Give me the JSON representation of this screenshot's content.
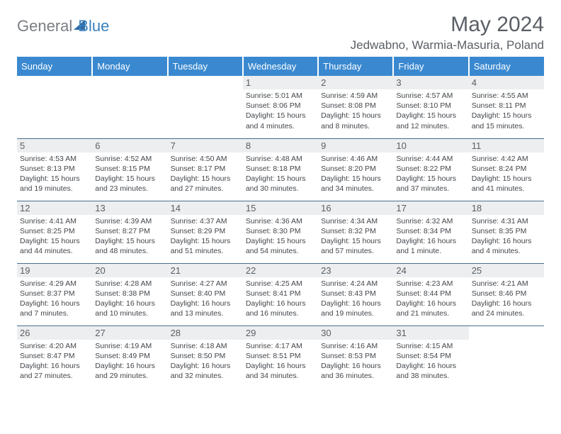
{
  "brand": {
    "word1": "General",
    "word2": "Blue"
  },
  "title": "May 2024",
  "location": "Jedwabno, Warmia-Masuria, Poland",
  "colors": {
    "header_bg": "#3a89d0",
    "header_text": "#ffffff",
    "daynum_bg": "#eceeef",
    "daynum_text": "#5b5f64",
    "body_text": "#42464b",
    "border": "#4a6e8f",
    "brand_grey": "#7a7f85",
    "brand_blue": "#3a7fbf",
    "title_color": "#5a5f66",
    "page_bg": "#ffffff"
  },
  "fonts": {
    "base": "Arial, Helvetica, sans-serif",
    "title_size": 30,
    "header_size": 13,
    "cell_size": 10.5
  },
  "weekdays": [
    "Sunday",
    "Monday",
    "Tuesday",
    "Wednesday",
    "Thursday",
    "Friday",
    "Saturday"
  ],
  "weeks": [
    [
      {
        "day": "",
        "sunrise": "",
        "sunset": "",
        "daylight": ""
      },
      {
        "day": "",
        "sunrise": "",
        "sunset": "",
        "daylight": ""
      },
      {
        "day": "",
        "sunrise": "",
        "sunset": "",
        "daylight": ""
      },
      {
        "day": "1",
        "sunrise": "Sunrise: 5:01 AM",
        "sunset": "Sunset: 8:06 PM",
        "daylight": "Daylight: 15 hours and 4 minutes."
      },
      {
        "day": "2",
        "sunrise": "Sunrise: 4:59 AM",
        "sunset": "Sunset: 8:08 PM",
        "daylight": "Daylight: 15 hours and 8 minutes."
      },
      {
        "day": "3",
        "sunrise": "Sunrise: 4:57 AM",
        "sunset": "Sunset: 8:10 PM",
        "daylight": "Daylight: 15 hours and 12 minutes."
      },
      {
        "day": "4",
        "sunrise": "Sunrise: 4:55 AM",
        "sunset": "Sunset: 8:11 PM",
        "daylight": "Daylight: 15 hours and 15 minutes."
      }
    ],
    [
      {
        "day": "5",
        "sunrise": "Sunrise: 4:53 AM",
        "sunset": "Sunset: 8:13 PM",
        "daylight": "Daylight: 15 hours and 19 minutes."
      },
      {
        "day": "6",
        "sunrise": "Sunrise: 4:52 AM",
        "sunset": "Sunset: 8:15 PM",
        "daylight": "Daylight: 15 hours and 23 minutes."
      },
      {
        "day": "7",
        "sunrise": "Sunrise: 4:50 AM",
        "sunset": "Sunset: 8:17 PM",
        "daylight": "Daylight: 15 hours and 27 minutes."
      },
      {
        "day": "8",
        "sunrise": "Sunrise: 4:48 AM",
        "sunset": "Sunset: 8:18 PM",
        "daylight": "Daylight: 15 hours and 30 minutes."
      },
      {
        "day": "9",
        "sunrise": "Sunrise: 4:46 AM",
        "sunset": "Sunset: 8:20 PM",
        "daylight": "Daylight: 15 hours and 34 minutes."
      },
      {
        "day": "10",
        "sunrise": "Sunrise: 4:44 AM",
        "sunset": "Sunset: 8:22 PM",
        "daylight": "Daylight: 15 hours and 37 minutes."
      },
      {
        "day": "11",
        "sunrise": "Sunrise: 4:42 AM",
        "sunset": "Sunset: 8:24 PM",
        "daylight": "Daylight: 15 hours and 41 minutes."
      }
    ],
    [
      {
        "day": "12",
        "sunrise": "Sunrise: 4:41 AM",
        "sunset": "Sunset: 8:25 PM",
        "daylight": "Daylight: 15 hours and 44 minutes."
      },
      {
        "day": "13",
        "sunrise": "Sunrise: 4:39 AM",
        "sunset": "Sunset: 8:27 PM",
        "daylight": "Daylight: 15 hours and 48 minutes."
      },
      {
        "day": "14",
        "sunrise": "Sunrise: 4:37 AM",
        "sunset": "Sunset: 8:29 PM",
        "daylight": "Daylight: 15 hours and 51 minutes."
      },
      {
        "day": "15",
        "sunrise": "Sunrise: 4:36 AM",
        "sunset": "Sunset: 8:30 PM",
        "daylight": "Daylight: 15 hours and 54 minutes."
      },
      {
        "day": "16",
        "sunrise": "Sunrise: 4:34 AM",
        "sunset": "Sunset: 8:32 PM",
        "daylight": "Daylight: 15 hours and 57 minutes."
      },
      {
        "day": "17",
        "sunrise": "Sunrise: 4:32 AM",
        "sunset": "Sunset: 8:34 PM",
        "daylight": "Daylight: 16 hours and 1 minute."
      },
      {
        "day": "18",
        "sunrise": "Sunrise: 4:31 AM",
        "sunset": "Sunset: 8:35 PM",
        "daylight": "Daylight: 16 hours and 4 minutes."
      }
    ],
    [
      {
        "day": "19",
        "sunrise": "Sunrise: 4:29 AM",
        "sunset": "Sunset: 8:37 PM",
        "daylight": "Daylight: 16 hours and 7 minutes."
      },
      {
        "day": "20",
        "sunrise": "Sunrise: 4:28 AM",
        "sunset": "Sunset: 8:38 PM",
        "daylight": "Daylight: 16 hours and 10 minutes."
      },
      {
        "day": "21",
        "sunrise": "Sunrise: 4:27 AM",
        "sunset": "Sunset: 8:40 PM",
        "daylight": "Daylight: 16 hours and 13 minutes."
      },
      {
        "day": "22",
        "sunrise": "Sunrise: 4:25 AM",
        "sunset": "Sunset: 8:41 PM",
        "daylight": "Daylight: 16 hours and 16 minutes."
      },
      {
        "day": "23",
        "sunrise": "Sunrise: 4:24 AM",
        "sunset": "Sunset: 8:43 PM",
        "daylight": "Daylight: 16 hours and 19 minutes."
      },
      {
        "day": "24",
        "sunrise": "Sunrise: 4:23 AM",
        "sunset": "Sunset: 8:44 PM",
        "daylight": "Daylight: 16 hours and 21 minutes."
      },
      {
        "day": "25",
        "sunrise": "Sunrise: 4:21 AM",
        "sunset": "Sunset: 8:46 PM",
        "daylight": "Daylight: 16 hours and 24 minutes."
      }
    ],
    [
      {
        "day": "26",
        "sunrise": "Sunrise: 4:20 AM",
        "sunset": "Sunset: 8:47 PM",
        "daylight": "Daylight: 16 hours and 27 minutes."
      },
      {
        "day": "27",
        "sunrise": "Sunrise: 4:19 AM",
        "sunset": "Sunset: 8:49 PM",
        "daylight": "Daylight: 16 hours and 29 minutes."
      },
      {
        "day": "28",
        "sunrise": "Sunrise: 4:18 AM",
        "sunset": "Sunset: 8:50 PM",
        "daylight": "Daylight: 16 hours and 32 minutes."
      },
      {
        "day": "29",
        "sunrise": "Sunrise: 4:17 AM",
        "sunset": "Sunset: 8:51 PM",
        "daylight": "Daylight: 16 hours and 34 minutes."
      },
      {
        "day": "30",
        "sunrise": "Sunrise: 4:16 AM",
        "sunset": "Sunset: 8:53 PM",
        "daylight": "Daylight: 16 hours and 36 minutes."
      },
      {
        "day": "31",
        "sunrise": "Sunrise: 4:15 AM",
        "sunset": "Sunset: 8:54 PM",
        "daylight": "Daylight: 16 hours and 38 minutes."
      },
      {
        "day": "",
        "sunrise": "",
        "sunset": "",
        "daylight": ""
      }
    ]
  ]
}
